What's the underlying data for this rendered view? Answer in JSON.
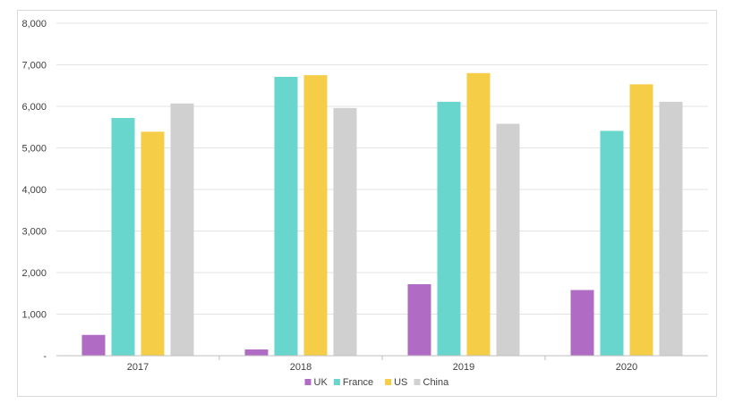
{
  "chart_data": {
    "type": "bar",
    "categories": [
      "2017",
      "2018",
      "2019",
      "2020"
    ],
    "series": [
      {
        "name": "UK",
        "color": "#b06cc4",
        "values": [
          500,
          150,
          1720,
          1580
        ]
      },
      {
        "name": "France",
        "color": "#68d6cc",
        "values": [
          5720,
          6710,
          6110,
          5410
        ]
      },
      {
        "name": "US",
        "color": "#f5cd47",
        "values": [
          5390,
          6750,
          6800,
          6530
        ]
      },
      {
        "name": "China",
        "color": "#d0d0d0",
        "values": [
          6070,
          5960,
          5580,
          6110
        ]
      }
    ],
    "ylim": [
      0,
      8000
    ],
    "yticks": [
      0,
      1000,
      2000,
      3000,
      4000,
      5000,
      6000,
      7000,
      8000
    ],
    "ytick_labels": [
      "-",
      "1,000",
      "2,000",
      "3,000",
      "4,000",
      "5,000",
      "6,000",
      "7,000",
      "8,000"
    ],
    "grid": true,
    "legend_position": "bottom",
    "title": "",
    "xlabel": "",
    "ylabel": ""
  }
}
